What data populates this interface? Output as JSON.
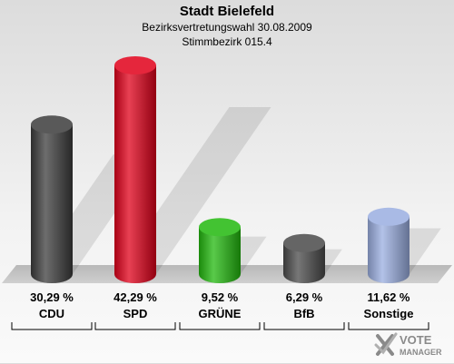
{
  "header": {
    "title": "Stadt Bielefeld",
    "subtitle1": "Bezirksvertretungswahl 30.08.2009",
    "subtitle2": "Stimmbezirk 015.4"
  },
  "chart_data": {
    "type": "bar",
    "categories": [
      "CDU",
      "SPD",
      "GRÜNE",
      "BfB",
      "Sonstige"
    ],
    "values": [
      30.29,
      42.29,
      9.52,
      6.29,
      11.62
    ],
    "value_labels": [
      "30,29 %",
      "42,29 %",
      "9,52 %",
      "6,29 %",
      "11,62 %"
    ],
    "colors": [
      "#3c3c3c",
      "#e0001a",
      "#22b80e",
      "#4a4a4a",
      "#9aaee0"
    ],
    "ylim": [
      0,
      45
    ],
    "legend": "none",
    "grid": false
  },
  "logo": {
    "line1": "VOTE",
    "line2": "MANAGER",
    "icon": "checkmark-x-icon"
  }
}
